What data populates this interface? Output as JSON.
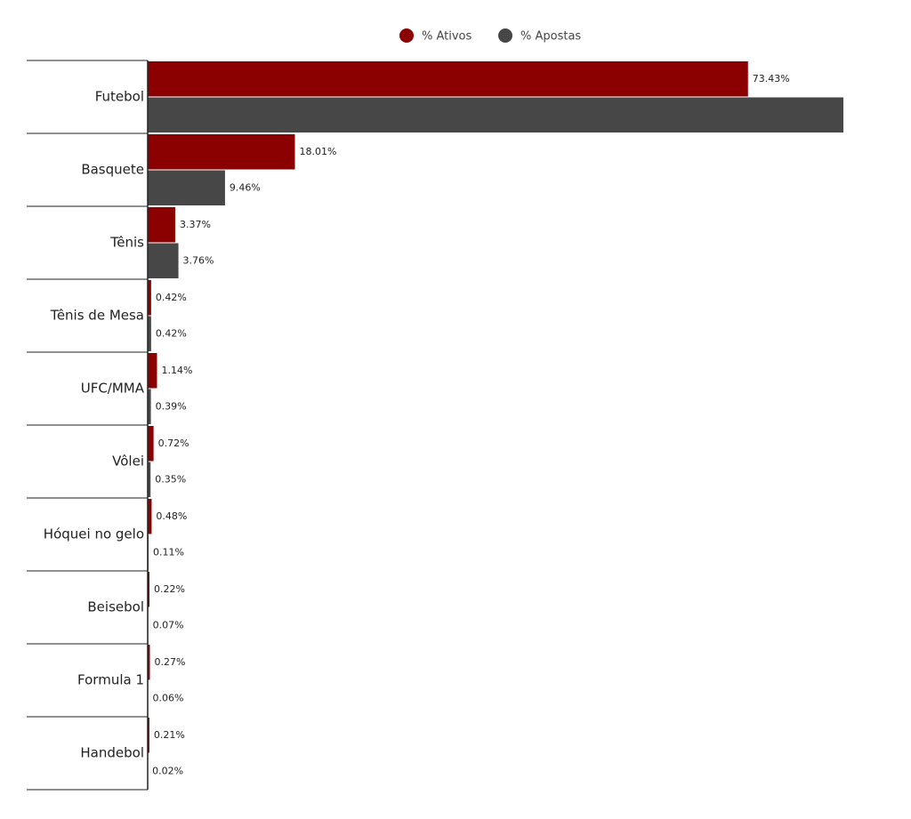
{
  "chart_data": {
    "type": "hbar",
    "categories": [
      "Futebol",
      "Basquete",
      "Tênis",
      "Tênis de Mesa",
      "UFC/MMA",
      "Vôlei",
      "Hóquei no gelo",
      "Beisebol",
      "Formula 1",
      "Handebol"
    ],
    "series": [
      {
        "name": "% Ativos",
        "color": "#8b0000",
        "values": [
          73.43,
          18.01,
          3.37,
          0.42,
          1.14,
          0.72,
          0.48,
          0.22,
          0.27,
          0.21
        ],
        "value_labels": [
          "73.43%",
          "18.01%",
          "3.37%",
          "0.42%",
          "1.14%",
          "0.72%",
          "0.48%",
          "0.22%",
          "0.27%",
          "0.21%"
        ]
      },
      {
        "name": "% Apostas",
        "color": "#474747",
        "values": [
          85.1,
          9.46,
          3.76,
          0.42,
          0.39,
          0.35,
          0.11,
          0.07,
          0.06,
          0.02
        ],
        "value_labels": [
          null,
          "9.46%",
          "3.76%",
          "0.42%",
          "0.39%",
          "0.35%",
          "0.11%",
          "0.07%",
          "0.06%",
          "0.02%"
        ]
      }
    ],
    "legend": "top"
  }
}
